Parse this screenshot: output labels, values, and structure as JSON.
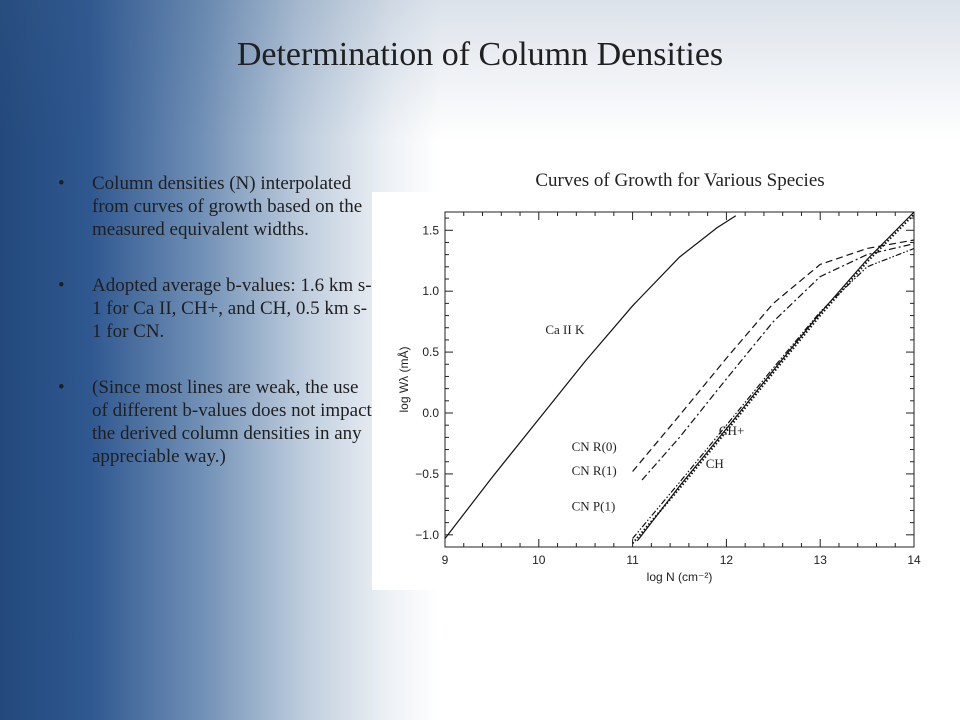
{
  "slide": {
    "title": "Determination of Column Densities"
  },
  "bullets": [
    {
      "marker": "•",
      "text": "Column densities (N) interpolated from curves of growth based on the measured equivalent widths."
    },
    {
      "marker": "•",
      "text": "Adopted average b-values: 1.6 km s-1 for Ca II, CH+, and CH, 0.5 km s-1 for CN."
    },
    {
      "marker": "•",
      "text": "(Since most lines are weak, the use of different b-values does not impact the derived column densities in any appreciable way.)"
    }
  ],
  "chart_data": {
    "type": "line",
    "title": "Curves of Growth for Various Species",
    "xlabel": "log N (cm⁻²)",
    "ylabel": "log Wλ (mÅ)",
    "xlim": [
      9,
      14
    ],
    "ylim": [
      -1.1,
      1.65
    ],
    "xticks": [
      "9",
      "10",
      "11",
      "12",
      "13",
      "14"
    ],
    "yticks": [
      "−1.0",
      "−0.5",
      "0.0",
      "0.5",
      "1.0",
      "1.5"
    ],
    "grid": false,
    "series": [
      {
        "name": "Ca II K",
        "dash": "solid",
        "color": "#111111",
        "x": [
          9.0,
          9.5,
          10.0,
          10.5,
          11.0,
          11.5,
          11.9,
          12.1
        ],
        "y": [
          -1.03,
          -0.53,
          -0.05,
          0.43,
          0.88,
          1.28,
          1.52,
          1.62
        ]
      },
      {
        "name": "CN R(0)",
        "dash": "dashed",
        "color": "#111111",
        "x": [
          11.0,
          11.5,
          12.0,
          12.5,
          13.0,
          13.5,
          14.0
        ],
        "y": [
          -0.48,
          -0.02,
          0.45,
          0.9,
          1.22,
          1.35,
          1.42
        ]
      },
      {
        "name": "CN R(1)",
        "dash": "dashdot",
        "color": "#111111",
        "x": [
          11.1,
          11.5,
          12.0,
          12.5,
          13.0,
          13.5,
          14.0
        ],
        "y": [
          -0.55,
          -0.2,
          0.28,
          0.75,
          1.12,
          1.3,
          1.39
        ]
      },
      {
        "name": "CN P(1)",
        "dash": "dashdotdot",
        "color": "#111111",
        "x": [
          11.0,
          11.5,
          12.0,
          12.5,
          13.0,
          13.5,
          14.0
        ],
        "y": [
          -1.03,
          -0.57,
          -0.1,
          0.37,
          0.83,
          1.2,
          1.35
        ]
      },
      {
        "name": "CH+",
        "dash": "solid",
        "color": "#111111",
        "x": [
          11.05,
          11.5,
          12.0,
          12.5,
          13.0,
          13.5,
          14.0
        ],
        "y": [
          -1.05,
          -0.6,
          -0.13,
          0.35,
          0.82,
          1.26,
          1.65
        ]
      },
      {
        "name": "CH",
        "dash": "dotted",
        "color": "#111111",
        "x": [
          11.0,
          11.5,
          12.0,
          12.5,
          13.0,
          13.5,
          14.0
        ],
        "y": [
          -1.07,
          -0.62,
          -0.15,
          0.33,
          0.8,
          1.24,
          1.63
        ]
      }
    ],
    "labels": [
      {
        "text": "Ca II K",
        "x": 10.07,
        "y": 0.65
      },
      {
        "text": "CN R(0)",
        "x": 10.35,
        "y": -0.31
      },
      {
        "text": "CN R(1)",
        "x": 10.35,
        "y": -0.51
      },
      {
        "text": "CN P(1)",
        "x": 10.35,
        "y": -0.8
      },
      {
        "text": "CH+",
        "x": 11.92,
        "y": -0.18
      },
      {
        "text": "CH",
        "x": 11.78,
        "y": -0.45
      }
    ]
  }
}
